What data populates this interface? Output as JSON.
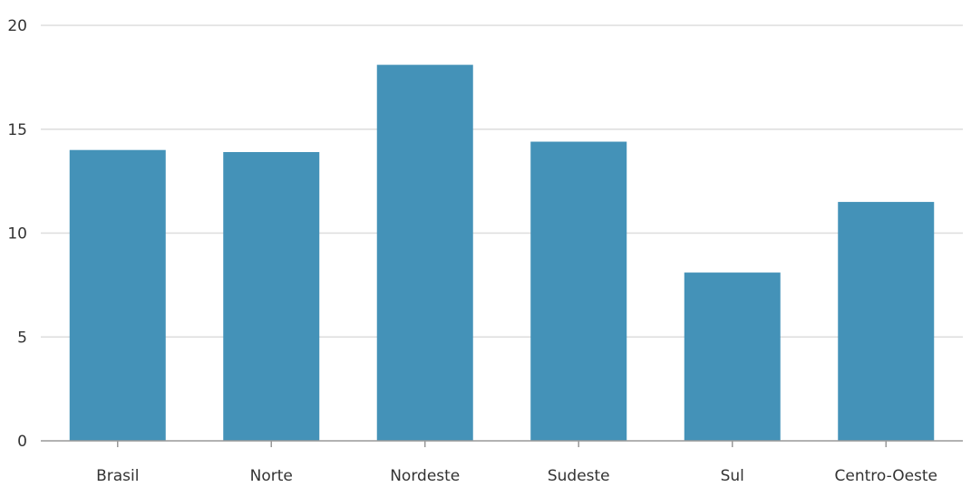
{
  "chart_data": {
    "type": "bar",
    "categories": [
      "Brasil",
      "Norte",
      "Nordeste",
      "Sudeste",
      "Sul",
      "Centro-Oeste"
    ],
    "values": [
      14.0,
      13.9,
      18.1,
      14.4,
      8.1,
      11.5
    ],
    "title": "",
    "xlabel": "",
    "ylabel": "",
    "ylim": [
      0,
      20
    ],
    "yticks": [
      0,
      5,
      10,
      15,
      20
    ],
    "grid": "horizontal",
    "legend": "none",
    "bar_color": "#4492b8"
  }
}
